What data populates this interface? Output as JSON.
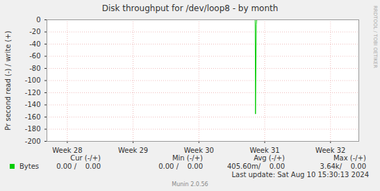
{
  "chart_data": {
    "type": "line",
    "title": "Disk throughput for /dev/loop8 - by month",
    "y_label": "Pr second read (-) / write (+)",
    "x": [
      27.69,
      30.855,
      30.86,
      30.872,
      30.878,
      32.43
    ],
    "series": [
      {
        "name": "Bytes",
        "color": "#00cc00",
        "values": [
          0,
          0,
          -155,
          -8,
          0,
          0
        ]
      }
    ],
    "xlim": [
      27.69,
      32.43
    ],
    "xticks": [
      {
        "value": 28,
        "label": "Week 28"
      },
      {
        "value": 29,
        "label": "Week 29"
      },
      {
        "value": 30,
        "label": "Week 30"
      },
      {
        "value": 31,
        "label": "Week 31"
      },
      {
        "value": 32,
        "label": "Week 32"
      }
    ],
    "ylim": [
      -200,
      0
    ],
    "yticks": [
      0,
      -20,
      -40,
      -60,
      -80,
      -100,
      -120,
      -140,
      -160,
      -180,
      -200
    ],
    "grid": true,
    "legend_table": {
      "columns": [
        "Cur (-/+)",
        "Min (-/+)",
        "Avg (-/+)",
        "Max (-/+)"
      ],
      "rows": [
        {
          "series": "Bytes",
          "cells": [
            "0.00 /    0.00",
            "0.00 /    0.00",
            "405.60m/    0.00",
            "3.64k/    0.00"
          ]
        }
      ]
    },
    "last_update": "Last update: Sat Aug 10 15:30:13 2024",
    "footer": "Munin 2.0.56",
    "watermark": "RRDTOOL / TOBI OETIKER"
  }
}
